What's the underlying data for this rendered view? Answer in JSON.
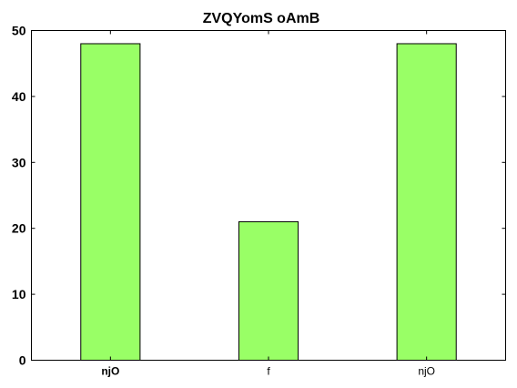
{
  "chart_data": {
    "type": "bar",
    "title": "ZVQYomS oAmB",
    "xlabel": "",
    "ylabel": "",
    "categories": [
      "njO",
      "f",
      "njO"
    ],
    "category_bold": [
      true,
      false,
      false
    ],
    "values": [
      48,
      21,
      48
    ],
    "ylim": [
      0,
      50
    ],
    "yticks": [
      0,
      10,
      20,
      30,
      40,
      50
    ],
    "grid": false,
    "legend": "none",
    "bar_color": "#99ff66",
    "edge_color": "#000000"
  }
}
